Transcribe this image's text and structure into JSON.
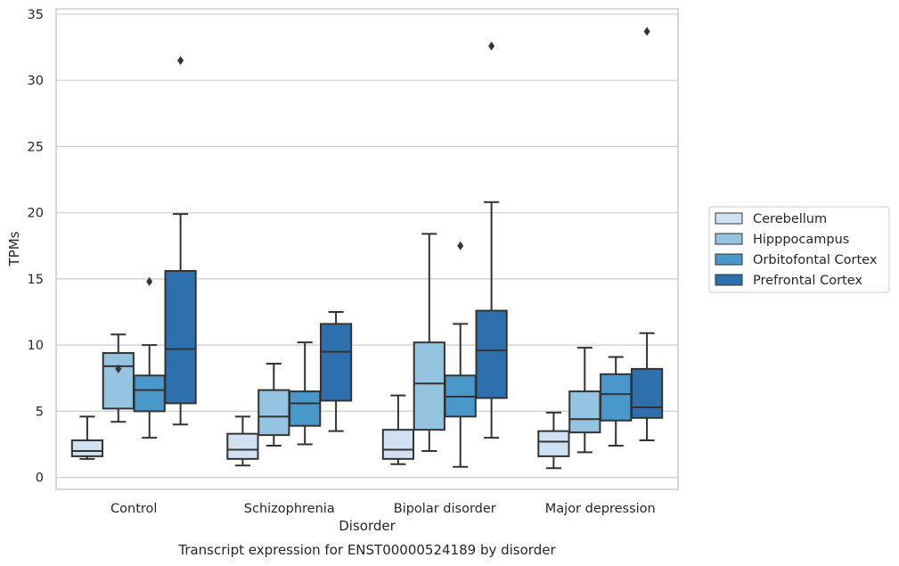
{
  "chart_data": {
    "type": "boxplot",
    "title": "Transcript expression for ENST00000524189 by disorder",
    "xlabel": "Disorder",
    "ylabel": "TPMs",
    "ylim": [
      -0.9,
      35.4
    ],
    "yticks": [
      0,
      5,
      10,
      15,
      20,
      25,
      30,
      35
    ],
    "grid": "horizontal",
    "legend_position": "right",
    "categories": [
      "Control",
      "Schizophrenia",
      "Bipolar disorder",
      "Major depression"
    ],
    "series": [
      {
        "name": "Cerebellum",
        "color": "#d0e1f2",
        "boxes": [
          {
            "whislo": 1.4,
            "q1": 1.6,
            "med": 2.0,
            "q3": 2.8,
            "whishi": 4.6,
            "fliers": []
          },
          {
            "whislo": 0.9,
            "q1": 1.4,
            "med": 2.1,
            "q3": 3.3,
            "whishi": 4.6,
            "fliers": []
          },
          {
            "whislo": 1.0,
            "q1": 1.4,
            "med": 2.1,
            "q3": 3.6,
            "whishi": 6.2,
            "fliers": []
          },
          {
            "whislo": 0.7,
            "q1": 1.6,
            "med": 2.7,
            "q3": 3.5,
            "whishi": 4.9,
            "fliers": []
          }
        ]
      },
      {
        "name": "Hipppocampus",
        "color": "#94c4df",
        "boxes": [
          {
            "whislo": 4.2,
            "q1": 5.2,
            "med": 8.4,
            "q3": 9.4,
            "whishi": 10.8,
            "fliers": [
              8.2
            ]
          },
          {
            "whislo": 2.4,
            "q1": 3.2,
            "med": 4.6,
            "q3": 6.6,
            "whishi": 8.6,
            "fliers": []
          },
          {
            "whislo": 2.0,
            "q1": 3.6,
            "med": 7.1,
            "q3": 10.2,
            "whishi": 18.4,
            "fliers": []
          },
          {
            "whislo": 1.9,
            "q1": 3.4,
            "med": 4.4,
            "q3": 6.5,
            "whishi": 9.8,
            "fliers": []
          }
        ]
      },
      {
        "name": "Orbitofontal Cortex",
        "color": "#4a98c9",
        "boxes": [
          {
            "whislo": 3.0,
            "q1": 5.0,
            "med": 6.6,
            "q3": 7.7,
            "whishi": 10.0,
            "fliers": [
              14.8
            ]
          },
          {
            "whislo": 2.5,
            "q1": 3.9,
            "med": 5.6,
            "q3": 6.5,
            "whishi": 10.2,
            "fliers": []
          },
          {
            "whislo": 0.8,
            "q1": 4.6,
            "med": 6.1,
            "q3": 7.7,
            "whishi": 11.6,
            "fliers": [
              17.5
            ]
          },
          {
            "whislo": 2.4,
            "q1": 4.3,
            "med": 6.3,
            "q3": 7.8,
            "whishi": 9.1,
            "fliers": []
          }
        ]
      },
      {
        "name": "Prefrontal Cortex",
        "color": "#2e6fae",
        "boxes": [
          {
            "whislo": 4.0,
            "q1": 5.6,
            "med": 9.7,
            "q3": 15.6,
            "whishi": 19.9,
            "fliers": [
              31.5
            ]
          },
          {
            "whislo": 3.5,
            "q1": 5.8,
            "med": 9.5,
            "q3": 11.6,
            "whishi": 12.5,
            "fliers": []
          },
          {
            "whislo": 3.0,
            "q1": 6.0,
            "med": 9.6,
            "q3": 12.6,
            "whishi": 20.8,
            "fliers": [
              32.6
            ]
          },
          {
            "whislo": 2.8,
            "q1": 4.5,
            "med": 5.3,
            "q3": 8.2,
            "whishi": 10.9,
            "fliers": [
              33.7
            ]
          }
        ]
      }
    ]
  }
}
